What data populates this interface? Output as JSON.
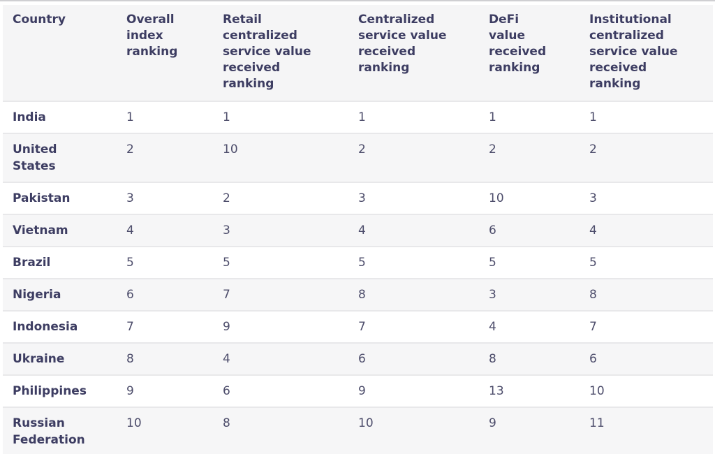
{
  "colors": {
    "header_background": "#f5f5f6",
    "alt_row_background": "#f6f6f7",
    "header_text": "#3d3d62",
    "country_text": "#3d3d62",
    "value_text": "#4d4d6b",
    "divider": "#e8e8ea"
  },
  "chart_data": {
    "type": "table",
    "columns": [
      "Country",
      "Overall\nindex\nranking",
      "Retail\ncentralized\nservice value\nreceived\nranking",
      "Centralized\nservice value\nreceived\nranking",
      "DeFi\nvalue\nreceived\nranking",
      "Institutional\ncentralized\nservice value\nreceived\nranking"
    ],
    "rows": [
      {
        "country": "India",
        "values": [
          1,
          1,
          1,
          1,
          1
        ]
      },
      {
        "country": "United\nStates",
        "values": [
          2,
          10,
          2,
          2,
          2
        ]
      },
      {
        "country": "Pakistan",
        "values": [
          3,
          2,
          3,
          10,
          3
        ]
      },
      {
        "country": "Vietnam",
        "values": [
          4,
          3,
          4,
          6,
          4
        ]
      },
      {
        "country": "Brazil",
        "values": [
          5,
          5,
          5,
          5,
          5
        ]
      },
      {
        "country": "Nigeria",
        "values": [
          6,
          7,
          8,
          3,
          8
        ]
      },
      {
        "country": "Indonesia",
        "values": [
          7,
          9,
          7,
          4,
          7
        ]
      },
      {
        "country": "Ukraine",
        "values": [
          8,
          4,
          6,
          8,
          6
        ]
      },
      {
        "country": "Philippines",
        "values": [
          9,
          6,
          9,
          13,
          10
        ]
      },
      {
        "country": "Russian\nFederation",
        "values": [
          10,
          8,
          10,
          9,
          11
        ]
      }
    ]
  }
}
